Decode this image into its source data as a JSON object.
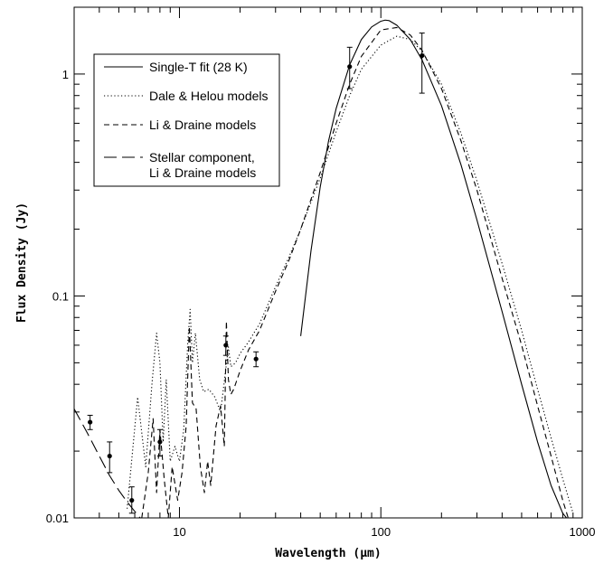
{
  "chart_data": {
    "type": "line",
    "title": "",
    "xlabel": "Wavelength (μm)",
    "ylabel": "Flux Density (Jy)",
    "x_scale": "log",
    "y_scale": "log",
    "xlim": [
      3,
      1000
    ],
    "ylim": [
      0.01,
      2
    ],
    "x_tick_labels": [
      "10",
      "100",
      "1000"
    ],
    "y_tick_labels": [
      "0.01",
      "0.1",
      "1"
    ],
    "grid": false,
    "legend_position": "top-left",
    "series": [
      {
        "name": "Single-T fit (28 K)",
        "style": "solid",
        "x": [
          40,
          45,
          50,
          55,
          60,
          70,
          80,
          90,
          100,
          105,
          110,
          120,
          140,
          160,
          200,
          250,
          300,
          400,
          500,
          600,
          700,
          800,
          850
        ],
        "y": [
          0.066,
          0.16,
          0.31,
          0.5,
          0.7,
          1.1,
          1.43,
          1.63,
          1.73,
          1.75,
          1.74,
          1.66,
          1.43,
          1.16,
          0.72,
          0.39,
          0.22,
          0.085,
          0.04,
          0.022,
          0.014,
          0.0105,
          0.0098
        ]
      },
      {
        "name": "Dale & Helou models",
        "style": "dotted",
        "x": [
          5.5,
          6.2,
          6.8,
          7.3,
          7.7,
          8.0,
          8.3,
          8.6,
          9.0,
          9.5,
          10.0,
          10.5,
          11.0,
          11.3,
          11.6,
          12.0,
          12.6,
          13.2,
          14.0,
          15.0,
          16.0,
          17.0,
          17.5,
          18.0,
          19.0,
          20.0,
          22.0,
          25.0,
          30.0,
          35.0,
          40.0,
          50.0,
          60.0,
          70.0,
          80.0,
          100.0,
          120.0,
          140.0,
          160.0,
          200.0,
          250.0,
          300.0,
          400.0,
          500.0,
          600.0,
          700.0,
          800.0,
          900.0
        ],
        "y": [
          0.011,
          0.035,
          0.017,
          0.04,
          0.068,
          0.05,
          0.022,
          0.042,
          0.018,
          0.021,
          0.018,
          0.025,
          0.062,
          0.087,
          0.05,
          0.068,
          0.042,
          0.037,
          0.038,
          0.035,
          0.03,
          0.047,
          0.059,
          0.048,
          0.05,
          0.055,
          0.062,
          0.075,
          0.11,
          0.15,
          0.2,
          0.34,
          0.55,
          0.8,
          1.05,
          1.35,
          1.48,
          1.43,
          1.27,
          0.9,
          0.54,
          0.33,
          0.14,
          0.07,
          0.038,
          0.023,
          0.015,
          0.0105
        ]
      },
      {
        "name": "Li & Draine models",
        "style": "dashed",
        "x": [
          6.5,
          7.0,
          7.4,
          7.7,
          8.0,
          8.4,
          8.8,
          9.2,
          9.8,
          10.3,
          10.8,
          11.2,
          11.6,
          12.1,
          12.7,
          13.3,
          13.8,
          14.3,
          15.2,
          16.0,
          16.7,
          17.1,
          17.5,
          18.0,
          18.6,
          20.0,
          22.0,
          25.0,
          30.0,
          35.0,
          40.0,
          50.0,
          60.0,
          70.0,
          80.0,
          100.0,
          120.0,
          140.0,
          160.0,
          200.0,
          250.0,
          300.0,
          400.0,
          500.0,
          600.0,
          700.0,
          800.0,
          900.0
        ],
        "y": [
          0.01,
          0.016,
          0.028,
          0.013,
          0.025,
          0.015,
          0.01,
          0.017,
          0.012,
          0.016,
          0.026,
          0.073,
          0.033,
          0.031,
          0.017,
          0.013,
          0.018,
          0.014,
          0.026,
          0.032,
          0.021,
          0.077,
          0.042,
          0.036,
          0.038,
          0.046,
          0.057,
          0.07,
          0.105,
          0.145,
          0.2,
          0.36,
          0.6,
          0.9,
          1.2,
          1.58,
          1.62,
          1.5,
          1.28,
          0.86,
          0.5,
          0.3,
          0.12,
          0.06,
          0.032,
          0.019,
          0.012,
          0.0085
        ]
      },
      {
        "name": "Stellar component, Li & Draine models",
        "style": "long-dash",
        "x": [
          3.0,
          3.5,
          4.0,
          4.5,
          5.0,
          5.5,
          6.0,
          6.5
        ],
        "y": [
          0.031,
          0.024,
          0.019,
          0.0155,
          0.0133,
          0.0118,
          0.0107,
          0.0098
        ]
      }
    ],
    "observations": {
      "x": [
        3.6,
        4.5,
        5.8,
        8.0,
        17.0,
        24.0,
        70.0,
        160.0
      ],
      "y": [
        0.027,
        0.019,
        0.012,
        0.022,
        0.06,
        0.052,
        1.08,
        1.21
      ],
      "yerr_low": [
        0.025,
        0.016,
        0.0105,
        0.019,
        0.054,
        0.048,
        0.86,
        0.82
      ],
      "yerr_high": [
        0.029,
        0.022,
        0.0138,
        0.025,
        0.066,
        0.056,
        1.32,
        1.53
      ]
    }
  }
}
